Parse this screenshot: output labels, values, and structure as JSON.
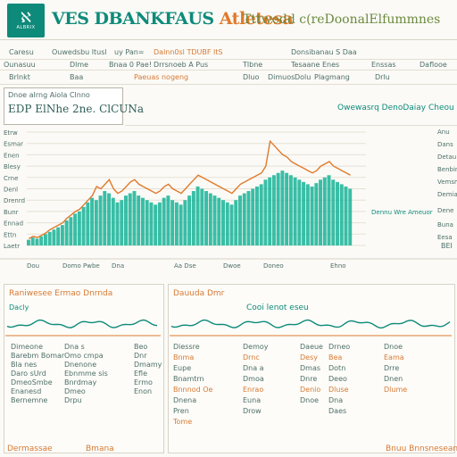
{
  "logo": {
    "mark": "ℵ",
    "sub": "ALBRIX"
  },
  "header": {
    "title_part1": "VES DBANKFAUS",
    "title_part2": "Atletesa",
    "title_rest": "Tttwedd c(reDoonalElfummnes"
  },
  "toolbar_row1": [
    "Caresu",
    "Ouwedsbu ltusl",
    "uy Pan=",
    "Dalnn0sl TDUBF ltS",
    "Donsibanau S Daa"
  ],
  "toolbar_row2": [
    "Ounasuu",
    "Dlme",
    "Bnaa 0 Pae!",
    "Drrsnoeb A Pus",
    "Tlbne",
    "Tesaane Enes",
    "Enssas",
    "Daflooe"
  ],
  "toolbar_row3": [
    "Brlnkt",
    "Baa",
    "Paeuas nogeng",
    "Dluo",
    "Dimuos",
    "Dolu",
    "Plagmang",
    "Drlu"
  ],
  "info_box": {
    "head": "Dnoe  aIrng   Aiola  Clnno",
    "value": "EDP  ElNhe   2ne. ClCUNa"
  },
  "right_caption": "Owewasrq DenoDaiay Cheou",
  "chart": {
    "ytick_labels": [
      "Etrw",
      "Esmar",
      "Enen",
      "Blesy",
      "Crne",
      "Denl",
      "Drenrd",
      "Bunr",
      "Ennad",
      "Ettn",
      "Laetr"
    ],
    "xtick_labels": [
      "Dou",
      "Domo Pwbe",
      "Dna",
      "Aa Dse",
      "Dwoe",
      "Doneo",
      "Ehno"
    ],
    "right_labels": [
      "Anu",
      "Dans",
      "Detau",
      "Benbinro",
      "Vemsm",
      "Demia",
      "Dene",
      "Dennu Wre Ameuor",
      "Buna",
      "Eesa"
    ],
    "right_tail": "BEI"
  },
  "chart_data": {
    "type": "bar",
    "series": [
      {
        "name": "teal",
        "color": "#16b398",
        "values": [
          5,
          7,
          6,
          8,
          10,
          12,
          14,
          16,
          18,
          22,
          25,
          28,
          30,
          34,
          38,
          42,
          40,
          44,
          48,
          46,
          42,
          38,
          40,
          44,
          46,
          48,
          44,
          42,
          40,
          38,
          36,
          38,
          42,
          44,
          40,
          38,
          36,
          40,
          44,
          48,
          52,
          50,
          48,
          46,
          44,
          42,
          40,
          38,
          36,
          40,
          44,
          46,
          48,
          50,
          52,
          54,
          58,
          60,
          62,
          64,
          66,
          64,
          62,
          60,
          58,
          56,
          54,
          52,
          55,
          58,
          60,
          62,
          58,
          56,
          54,
          52,
          50
        ]
      },
      {
        "name": "orange",
        "color": "#e07a2c",
        "values": [
          6,
          8,
          7,
          9,
          11,
          14,
          16,
          18,
          20,
          24,
          27,
          30,
          32,
          36,
          40,
          44,
          52,
          50,
          54,
          58,
          50,
          46,
          48,
          52,
          56,
          58,
          54,
          52,
          50,
          48,
          46,
          48,
          52,
          54,
          50,
          48,
          46,
          50,
          54,
          58,
          62,
          60,
          58,
          56,
          54,
          52,
          50,
          48,
          46,
          50,
          54,
          56,
          58,
          60,
          62,
          64,
          70,
          92,
          88,
          84,
          80,
          78,
          74,
          72,
          70,
          68,
          66,
          64,
          66,
          70,
          72,
          74,
          70,
          68,
          66,
          64,
          62
        ]
      }
    ],
    "ylim": [
      0,
      100
    ]
  },
  "lower_left": {
    "title": "Raniwesee Ermao Dnrnda",
    "subtitle": "Dacly",
    "rows": [
      [
        "Dimeone",
        "Dna s"
      ],
      [
        "Barebm Bomar",
        "Omo cmpa"
      ],
      [
        "Bla nes",
        "Dnenone"
      ],
      [
        "Daro sUrd",
        "Ebnmme sis"
      ],
      [
        "DmeoSmbe",
        "Bnrdmay"
      ],
      [
        "Enanesd",
        "Dmeo"
      ],
      [
        "Bernemne",
        "Drpu"
      ]
    ],
    "right_col": [
      "Beo",
      "Dnr",
      "Dmamy",
      "Efle",
      "Ermo",
      "Enon"
    ],
    "footer": [
      "Dermassae",
      "Bmana"
    ]
  },
  "lower_right": {
    "title": "Dauuda Dmr",
    "subtitle": "Cooi lenot eseu",
    "columns": [
      [
        "Diessre",
        "Bnma",
        "Eupe",
        "Bnamtrn",
        "Bnnnod Oe",
        "Dnena",
        "Pren",
        "Tome"
      ],
      [
        "Demoy",
        "Drnc",
        "Dna a",
        "Dmoa",
        "Enrao",
        "Euna",
        "Drow"
      ],
      [
        "Daeue",
        "Desy",
        "Dmas",
        "Dnre",
        "Denio",
        "Dnoe"
      ],
      [
        "Drneo",
        "Bea",
        "Dotn",
        "Deeo",
        "Dluse",
        "Dna",
        "Daes"
      ],
      [
        "Dnoe",
        "Eama",
        "Drre",
        "Dnen",
        "Dlume"
      ]
    ],
    "footer": "Bnuu  Bnnsneseano"
  }
}
